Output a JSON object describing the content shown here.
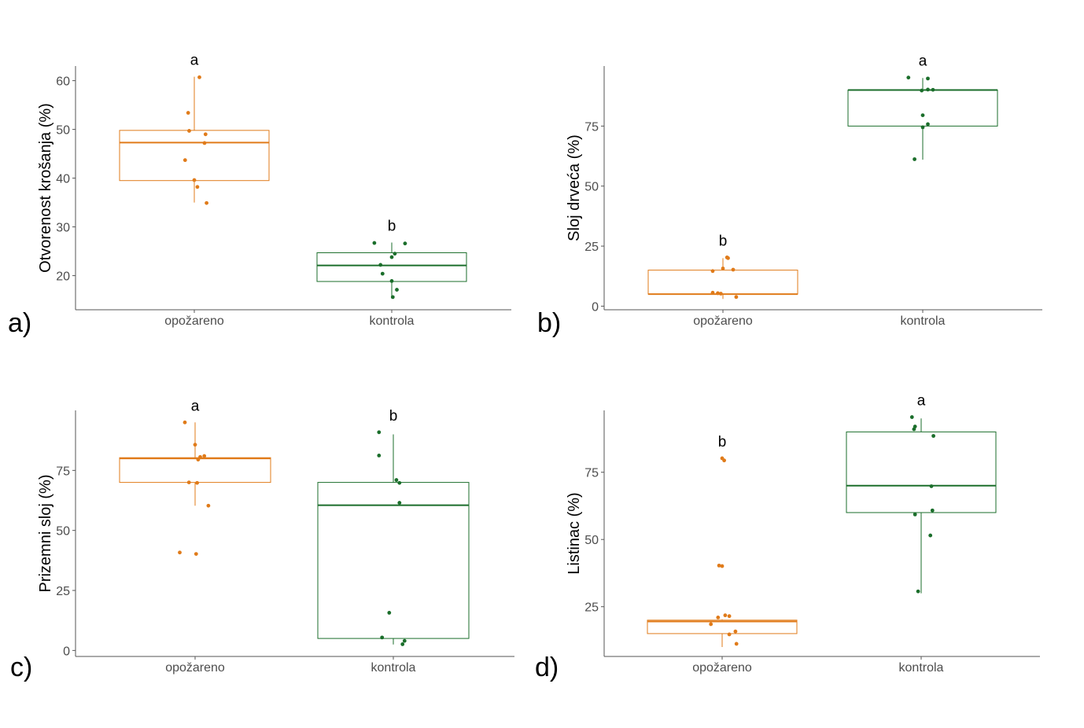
{
  "colors": {
    "opozareno": "#e07b1a",
    "kontrola": "#1b6e2b",
    "axis": "#555555",
    "tick_text": "#4d4d4d"
  },
  "chart_data": [
    {
      "panel_label": "a)",
      "type": "boxplot",
      "ylabel": "Otvorenost krošanja (%)",
      "ylim": [
        13,
        63
      ],
      "yticks": [
        20,
        30,
        40,
        50,
        60
      ],
      "categories": [
        "opožareno",
        "kontrola"
      ],
      "groups": [
        {
          "name": "opožareno",
          "color_key": "opozareno",
          "letter": "a",
          "stats": {
            "min": 35,
            "q1": 39.5,
            "median": 47.3,
            "q3": 49.8,
            "max": 60.8
          },
          "points": [
            60.7,
            53.4,
            49.7,
            49,
            47.2,
            43.7,
            39.6,
            38.2,
            34.9
          ],
          "jitter": [
            0.05,
            -0.06,
            -0.05,
            0.11,
            0.1,
            -0.09,
            0.0,
            0.03,
            0.12
          ]
        },
        {
          "name": "kontrola",
          "color_key": "kontrola",
          "letter": "b",
          "stats": {
            "min": 15.5,
            "q1": 18.8,
            "median": 22.1,
            "q3": 24.7,
            "max": 26.8
          },
          "points": [
            26.7,
            26.6,
            24.5,
            23.8,
            22.2,
            20.4,
            18.9,
            17.1,
            15.6
          ],
          "jitter": [
            -0.17,
            0.13,
            0.03,
            0.0,
            -0.11,
            -0.09,
            0.0,
            0.05,
            0.01
          ]
        }
      ]
    },
    {
      "panel_label": "b)",
      "type": "boxplot",
      "ylabel": "Sloj drveća (%)",
      "ylim": [
        -1.5,
        100
      ],
      "yticks": [
        0,
        25,
        50,
        75
      ],
      "categories": [
        "opožareno",
        "kontrola"
      ],
      "groups": [
        {
          "name": "opožareno",
          "color_key": "opozareno",
          "letter": "b",
          "stats": {
            "min": 3,
            "q1": 5,
            "median": 5,
            "q3": 15,
            "max": 20
          },
          "points": [
            20.3,
            20,
            15.7,
            15.2,
            14.6,
            5.6,
            5.4,
            5.2,
            3.8
          ],
          "jitter": [
            0.04,
            0.05,
            0.0,
            0.1,
            -0.1,
            -0.1,
            -0.05,
            -0.02,
            0.13
          ]
        },
        {
          "name": "kontrola",
          "color_key": "kontrola",
          "letter": "a",
          "stats": {
            "min": 61,
            "q1": 75,
            "median": 90,
            "q3": 90,
            "max": 95
          },
          "points": [
            95.2,
            94.8,
            90.2,
            90.1,
            89.8,
            79.5,
            75.8,
            74.5,
            61.2
          ],
          "jitter": [
            -0.14,
            0.05,
            0.05,
            0.1,
            -0.01,
            0.0,
            0.05,
            0.0,
            -0.08
          ]
        }
      ]
    },
    {
      "panel_label": "c)",
      "type": "boxplot",
      "ylabel": "Prizemni sloj (%)",
      "ylim": [
        -2.5,
        100
      ],
      "yticks": [
        0,
        25,
        50,
        75
      ],
      "categories": [
        "opožareno",
        "kontrola"
      ],
      "groups": [
        {
          "name": "opožareno",
          "color_key": "opozareno",
          "letter": "a",
          "stats": {
            "min": 60.3,
            "q1": 70,
            "median": 80,
            "q3": 80.3,
            "max": 95
          },
          "points": [
            95,
            85.7,
            81,
            80.6,
            79.5,
            70,
            69.8,
            60.3,
            40.8,
            40.2
          ],
          "jitter": [
            -0.1,
            0.0,
            0.09,
            0.05,
            0.03,
            -0.06,
            0.02,
            0.13,
            -0.15,
            0.01
          ]
        },
        {
          "name": "kontrola",
          "color_key": "kontrola",
          "letter": "b",
          "stats": {
            "min": 2.5,
            "q1": 5,
            "median": 60.5,
            "q3": 70,
            "max": 90
          },
          "points": [
            90.9,
            81.2,
            71,
            69.8,
            61.5,
            15.7,
            5.4,
            4,
            2.6
          ],
          "jitter": [
            -0.14,
            -0.14,
            0.03,
            0.06,
            0.06,
            -0.04,
            -0.11,
            0.11,
            0.09
          ]
        }
      ]
    },
    {
      "panel_label": "d)",
      "type": "boxplot",
      "ylabel": "Listinac (%)",
      "ylim": [
        6.5,
        98
      ],
      "yticks": [
        25,
        50,
        75
      ],
      "categories": [
        "opožareno",
        "kontrola"
      ],
      "groups": [
        {
          "name": "opožareno",
          "color_key": "opozareno",
          "letter": "b",
          "stats": {
            "min": 10,
            "q1": 15,
            "median": 19.5,
            "q3": 20,
            "max": 20.3
          },
          "points": [
            80.2,
            79.4,
            40.3,
            40.1,
            21.8,
            21.5,
            21,
            18.5,
            15.8,
            14.7,
            11.2
          ],
          "jitter": [
            0.0,
            0.02,
            -0.03,
            0.0,
            0.03,
            0.07,
            -0.04,
            -0.11,
            0.13,
            0.07,
            0.14
          ]
        },
        {
          "name": "kontrola",
          "color_key": "kontrola",
          "letter": "a",
          "stats": {
            "min": 30,
            "q1": 60,
            "median": 70,
            "q3": 90,
            "max": 95
          },
          "points": [
            95.5,
            92,
            91,
            88.5,
            69.8,
            60.8,
            59.3,
            51.5,
            30.7
          ],
          "jitter": [
            -0.09,
            -0.06,
            -0.07,
            0.12,
            0.1,
            0.11,
            -0.06,
            0.09,
            -0.03
          ]
        }
      ]
    }
  ]
}
